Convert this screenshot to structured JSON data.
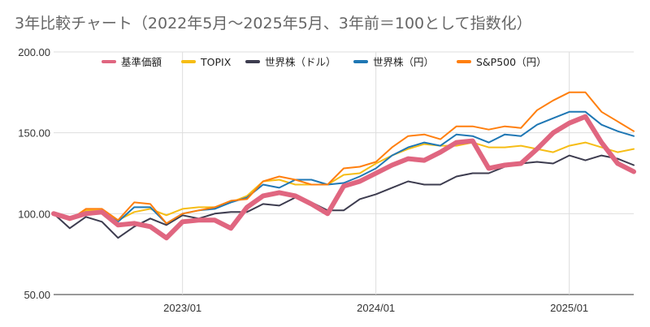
{
  "chart_data": {
    "type": "line",
    "title": "3年比較チャート（2022年5月～2025年5月、3年前＝100として指数化）",
    "xlabel": "",
    "ylabel": "",
    "ylim": [
      50,
      200
    ],
    "yticks": [
      "50.00",
      "100.00",
      "150.00",
      "200.00"
    ],
    "xticks": [
      "2023/01",
      "2024/01",
      "2025/01"
    ],
    "grid": true,
    "legend_position": "top",
    "x": [
      "2022/05",
      "2022/06",
      "2022/07",
      "2022/08",
      "2022/09",
      "2022/10",
      "2022/11",
      "2022/12",
      "2023/01",
      "2023/02",
      "2023/03",
      "2023/04",
      "2023/05",
      "2023/06",
      "2023/07",
      "2023/08",
      "2023/09",
      "2023/10",
      "2023/11",
      "2023/12",
      "2024/01",
      "2024/02",
      "2024/03",
      "2024/04",
      "2024/05",
      "2024/06",
      "2024/07",
      "2024/08",
      "2024/09",
      "2024/10",
      "2024/11",
      "2024/12",
      "2025/01",
      "2025/02",
      "2025/03",
      "2025/04",
      "2025/05"
    ],
    "series": [
      {
        "name": "基準価額",
        "color": "#e06680",
        "width": 6,
        "values": [
          100,
          97,
          100,
          101,
          93,
          94,
          92,
          85,
          95,
          96,
          96,
          91,
          104,
          111,
          113,
          111,
          106,
          100,
          117,
          120,
          125,
          130,
          134,
          133,
          138,
          144,
          145,
          128,
          130,
          131,
          140,
          150,
          156,
          160,
          144,
          131,
          126
        ]
      },
      {
        "name": "TOPIX",
        "color": "#f6bd16",
        "width": 2,
        "values": [
          100,
          97,
          102,
          102,
          96,
          101,
          103,
          99,
          103,
          104,
          104,
          107,
          111,
          120,
          121,
          118,
          118,
          118,
          124,
          125,
          131,
          136,
          140,
          143,
          142,
          142,
          144,
          141,
          141,
          142,
          140,
          138,
          142,
          144,
          141,
          138,
          140
        ]
      },
      {
        "name": "世界株（ドル）",
        "color": "#3d3c4f",
        "width": 2,
        "values": [
          100,
          91,
          98,
          95,
          85,
          92,
          97,
          93,
          99,
          97,
          100,
          101,
          101,
          106,
          105,
          110,
          107,
          102,
          102,
          109,
          112,
          116,
          120,
          118,
          118,
          123,
          125,
          125,
          129,
          131,
          132,
          131,
          136,
          133,
          136,
          134,
          130
        ]
      },
      {
        "name": "世界株（円）",
        "color": "#1f77b4",
        "width": 2,
        "values": [
          100,
          97,
          101,
          101,
          95,
          104,
          104,
          94,
          100,
          102,
          103,
          107,
          110,
          118,
          116,
          121,
          121,
          118,
          119,
          123,
          128,
          136,
          141,
          144,
          142,
          149,
          148,
          144,
          149,
          148,
          155,
          159,
          163,
          163,
          155,
          151,
          148
        ]
      },
      {
        "name": "S&P500（円）",
        "color": "#ff7f0e",
        "width": 2,
        "values": [
          100,
          96,
          103,
          103,
          96,
          107,
          106,
          94,
          100,
          102,
          104,
          108,
          109,
          120,
          123,
          121,
          118,
          118,
          128,
          129,
          132,
          141,
          148,
          149,
          146,
          154,
          154,
          152,
          154,
          153,
          164,
          170,
          175,
          175,
          163,
          157,
          151
        ]
      }
    ]
  }
}
